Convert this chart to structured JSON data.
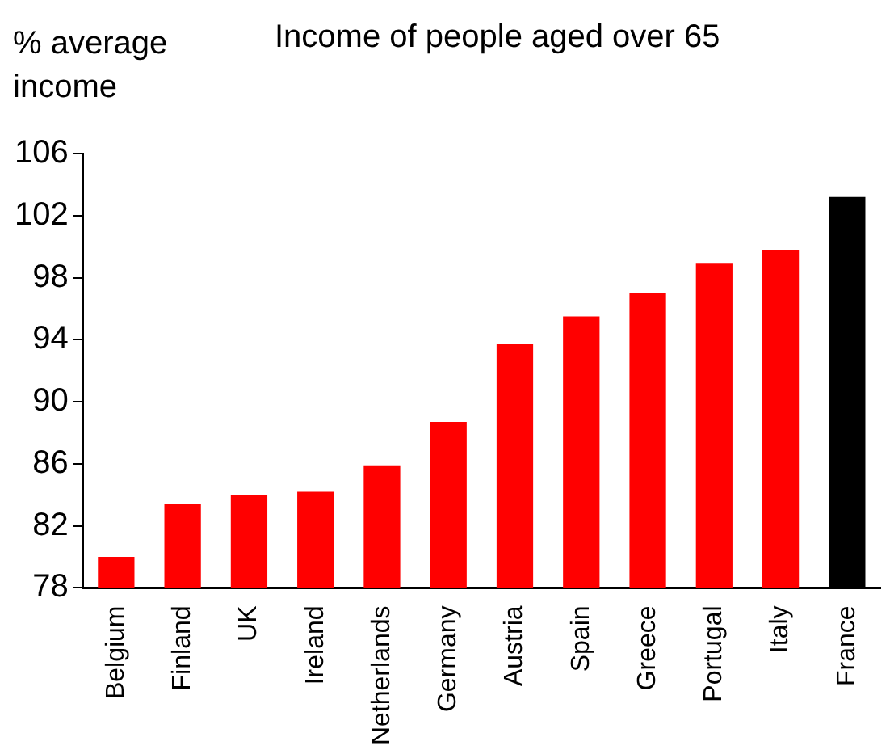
{
  "chart_data": {
    "type": "bar",
    "title": "Income of people aged over 65",
    "ylabel": "% average income",
    "categories": [
      "Belgium",
      "Finland",
      "UK",
      "Ireland",
      "Netherlands",
      "Germany",
      "Austria",
      "Spain",
      "Greece",
      "Portugal",
      "Italy",
      "France"
    ],
    "values": [
      80.0,
      83.4,
      84.0,
      84.2,
      85.9,
      88.7,
      93.7,
      95.5,
      97.0,
      98.9,
      99.8,
      103.2
    ],
    "colors": [
      "#ff0000",
      "#ff0000",
      "#ff0000",
      "#ff0000",
      "#ff0000",
      "#ff0000",
      "#ff0000",
      "#ff0000",
      "#ff0000",
      "#ff0000",
      "#ff0000",
      "#000000"
    ],
    "ylim": [
      78,
      106
    ],
    "yticks": [
      78,
      82,
      86,
      90,
      94,
      98,
      102,
      106
    ],
    "grid": false
  }
}
